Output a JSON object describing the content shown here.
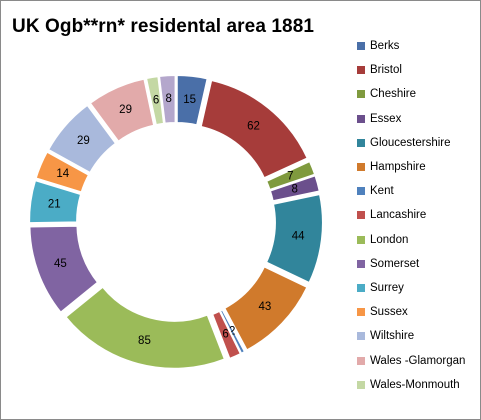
{
  "chart_data": {
    "type": "donut",
    "title": "UK Ogb**rn*  residental area 1881",
    "legend_position": "right",
    "series": [
      {
        "name": "Berks",
        "value": 15,
        "color": "#4a6fa8"
      },
      {
        "name": "Bristol",
        "value": 62,
        "color": "#a63c3a"
      },
      {
        "name": "Cheshire",
        "value": 7,
        "color": "#7f9a3e"
      },
      {
        "name": "Essex",
        "value": 8,
        "color": "#6b4f8c"
      },
      {
        "name": "Gloucestershire",
        "value": 44,
        "color": "#31859b"
      },
      {
        "name": "Hampshire",
        "value": 43,
        "color": "#d07a2c"
      },
      {
        "name": "Kent",
        "value": 2,
        "color": "#4f81bd"
      },
      {
        "name": "Lancashire",
        "value": 6,
        "color": "#c0504d"
      },
      {
        "name": "London",
        "value": 85,
        "color": "#9bbb59"
      },
      {
        "name": "Somerset",
        "value": 45,
        "color": "#8064a2"
      },
      {
        "name": "Surrey",
        "value": 21,
        "color": "#4bacc6"
      },
      {
        "name": "Sussex",
        "value": 14,
        "color": "#f79646"
      },
      {
        "name": "Wiltshire",
        "value": 29,
        "color": "#a9b9dc"
      },
      {
        "name": "Wales -Glamorgan",
        "value": 29,
        "color": "#e2aaaa"
      },
      {
        "name": "Wales-Monmouth",
        "value": 6,
        "color": "#c4d8a4"
      },
      {
        "name": "",
        "value": 8,
        "color": "#b4a7cc"
      }
    ]
  }
}
